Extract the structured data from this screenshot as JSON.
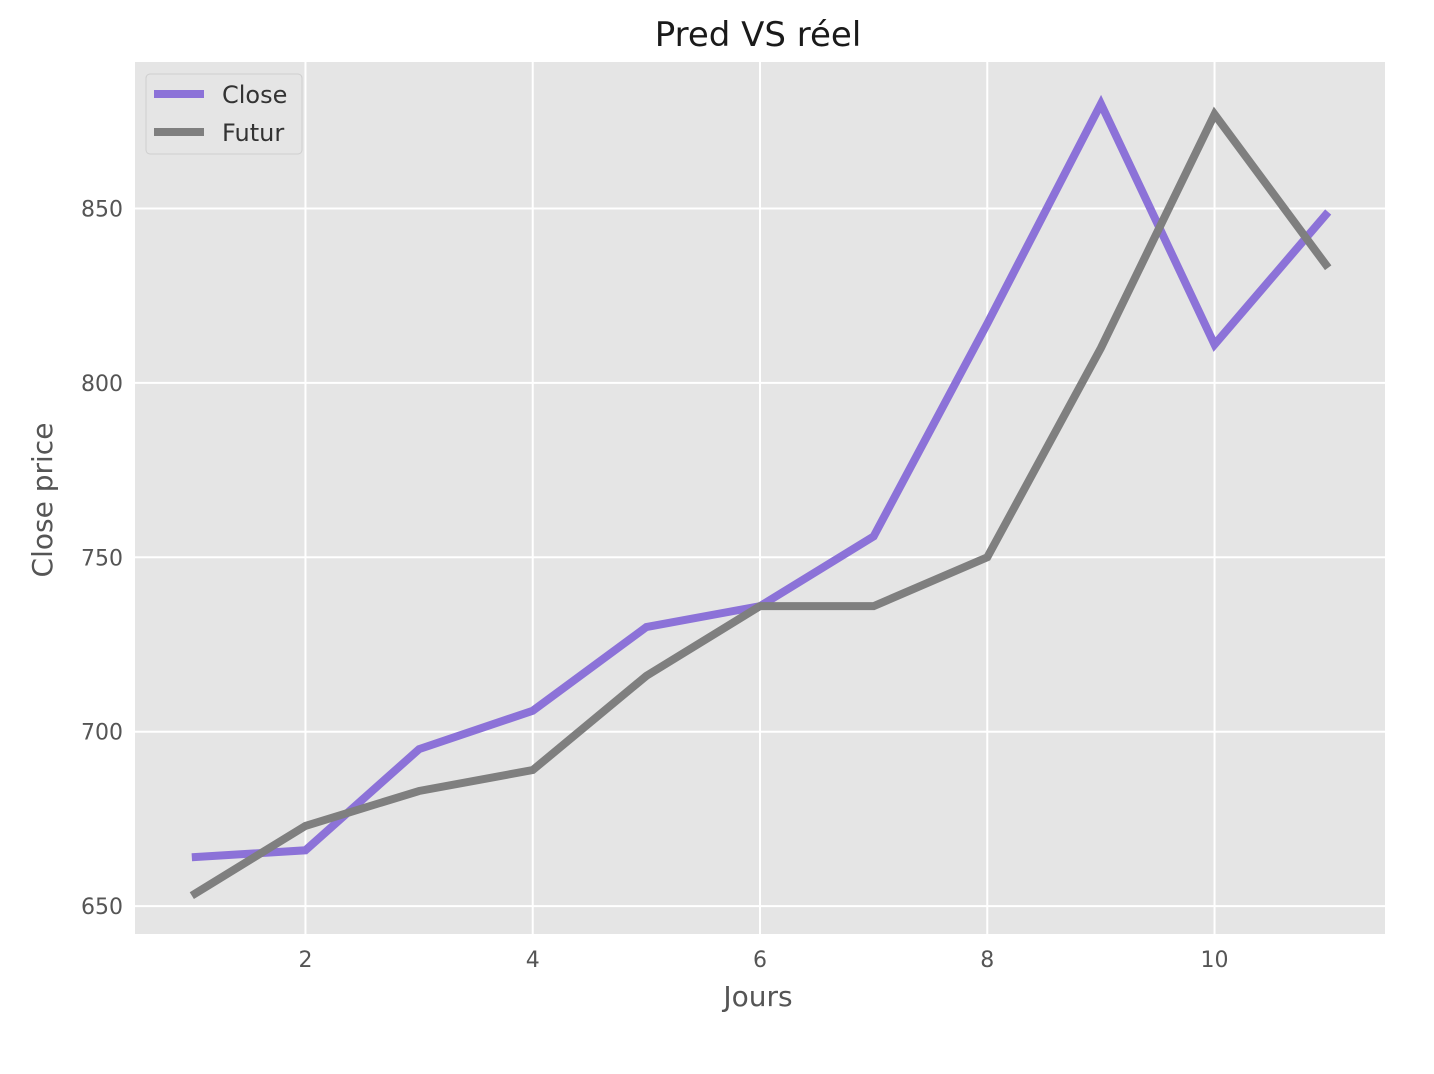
{
  "chart_data": {
    "type": "line",
    "title": "Pred VS réel",
    "xlabel": "Jours",
    "ylabel": "Close price",
    "x": [
      1,
      2,
      3,
      4,
      5,
      6,
      7,
      8,
      9,
      10,
      11
    ],
    "xlim": [
      0.5,
      11.5
    ],
    "ylim": [
      642,
      892
    ],
    "xticks": [
      2,
      4,
      6,
      8,
      10
    ],
    "yticks": [
      650,
      700,
      750,
      800,
      850
    ],
    "grid": true,
    "legend_position": "top-left",
    "series": [
      {
        "name": "Close",
        "color": "#8c72d8",
        "values": [
          664,
          666,
          695,
          706,
          730,
          736,
          756,
          817,
          880,
          811,
          849
        ]
      },
      {
        "name": "Futur",
        "color": "#7f7f7f",
        "values": [
          653,
          673,
          683,
          689,
          716,
          736,
          736,
          750,
          810,
          877,
          833
        ]
      }
    ]
  },
  "style": {
    "plot_background": "#e5e5e5",
    "grid_color": "#ffffff"
  }
}
